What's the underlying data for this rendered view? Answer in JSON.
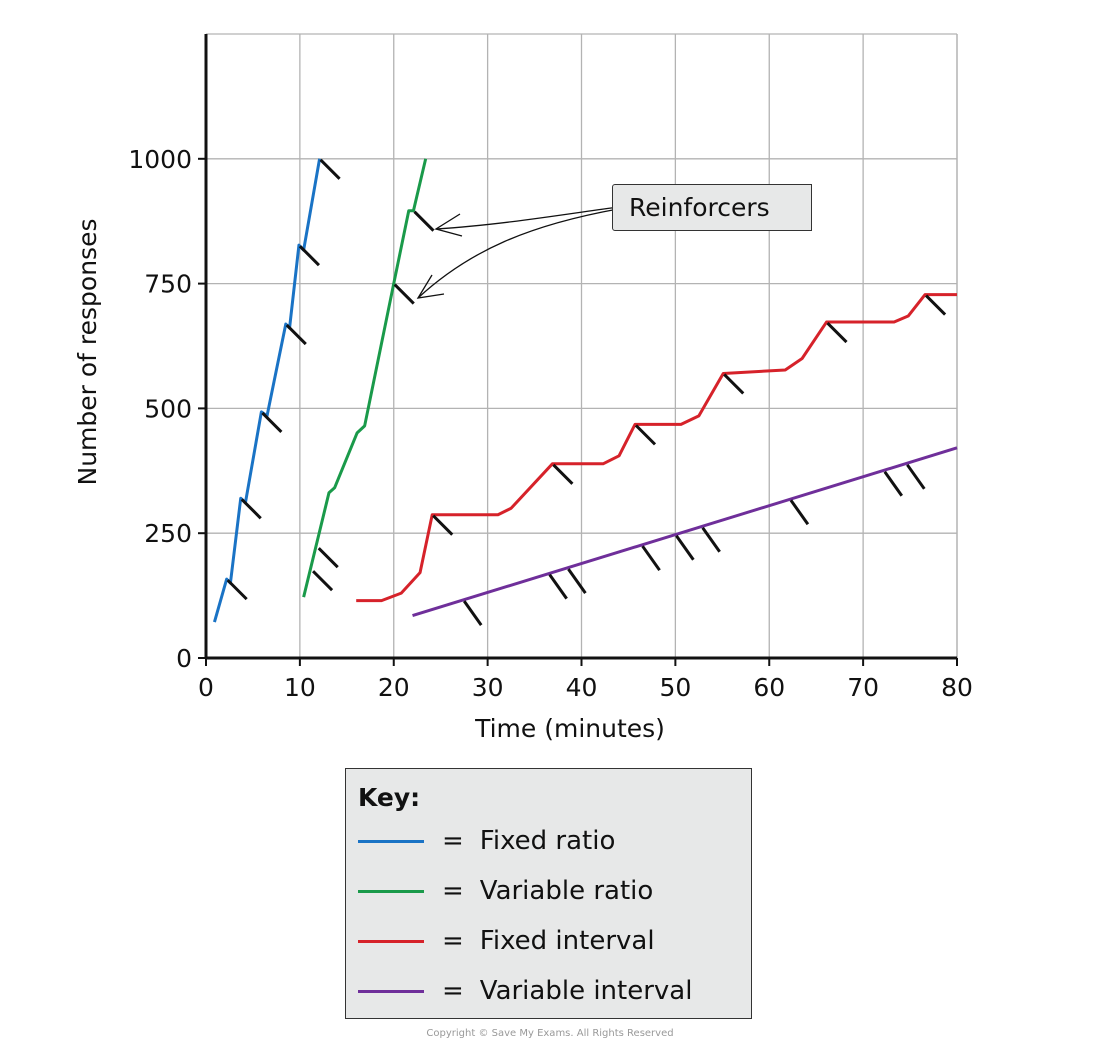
{
  "chart_data": {
    "type": "line",
    "title": "",
    "xlabel": "Time (minutes)",
    "ylabel": "Number of responses",
    "xlim": [
      0,
      80
    ],
    "ylim": [
      0,
      1250
    ],
    "xticks": [
      0,
      10,
      20,
      30,
      40,
      50,
      60,
      70,
      80
    ],
    "yticks": [
      0,
      250,
      500,
      750,
      1000
    ],
    "grid": true,
    "legend_placement": "bottom",
    "annotation": "Reinforcers",
    "series": [
      {
        "name": "Fixed ratio",
        "color": "#1a73c5",
        "points": [
          [
            0.9,
            72
          ],
          [
            2.2,
            158
          ],
          [
            2.6,
            150
          ],
          [
            3.7,
            320
          ],
          [
            4.2,
            311
          ],
          [
            5.9,
            493
          ],
          [
            6.5,
            485
          ],
          [
            8.5,
            669
          ],
          [
            8.9,
            661
          ],
          [
            9.9,
            827
          ],
          [
            10.4,
            817
          ],
          [
            12.1,
            1000
          ]
        ],
        "reinforcers": [
          [
            2.2,
            158
          ],
          [
            3.7,
            320
          ],
          [
            5.9,
            493
          ],
          [
            8.5,
            669
          ],
          [
            9.9,
            827
          ],
          [
            12.1,
            1000
          ]
        ]
      },
      {
        "name": "Variable ratio",
        "color": "#1a9a4a",
        "points": [
          [
            10.4,
            122
          ],
          [
            13.1,
            331
          ],
          [
            13.7,
            341
          ],
          [
            16.1,
            451
          ],
          [
            16.9,
            465
          ],
          [
            20,
            750
          ],
          [
            21.6,
            896
          ],
          [
            22.1,
            896
          ],
          [
            23.4,
            1000
          ]
        ],
        "reinforcers": [
          [
            11.3,
            176
          ],
          [
            11.9,
            222
          ],
          [
            20,
            750
          ],
          [
            22.1,
            896
          ]
        ]
      },
      {
        "name": "Fixed interval",
        "color": "#d6222a",
        "points": [
          [
            16,
            115
          ],
          [
            18.7,
            115
          ],
          [
            20.8,
            130
          ],
          [
            22.8,
            171
          ],
          [
            24.1,
            287
          ],
          [
            31.1,
            287
          ],
          [
            32.5,
            300
          ],
          [
            36.9,
            389
          ],
          [
            42.3,
            389
          ],
          [
            44,
            405
          ],
          [
            45.7,
            468
          ],
          [
            50.6,
            468
          ],
          [
            52.5,
            485
          ],
          [
            55.1,
            570
          ],
          [
            61.7,
            577
          ],
          [
            63.5,
            600
          ],
          [
            66.1,
            673
          ],
          [
            73.3,
            673
          ],
          [
            74.8,
            685
          ],
          [
            76.6,
            728
          ],
          [
            80,
            728
          ]
        ],
        "reinforcers": [
          [
            24.1,
            287
          ],
          [
            36.9,
            389
          ],
          [
            45.7,
            468
          ],
          [
            55.1,
            570
          ],
          [
            66.1,
            673
          ],
          [
            76.6,
            728
          ]
        ]
      },
      {
        "name": "Variable interval",
        "color": "#6f2f9a",
        "points": [
          [
            22,
            85
          ],
          [
            80,
            421
          ]
        ],
        "reinforcers": [
          [
            27.4,
            116
          ],
          [
            36.5,
            169
          ],
          [
            38.5,
            180
          ],
          [
            46.4,
            226
          ],
          [
            50,
            247
          ],
          [
            52.8,
            263
          ],
          [
            62.2,
            318
          ],
          [
            72.2,
            375
          ],
          [
            74.6,
            389
          ]
        ]
      }
    ]
  },
  "legend": {
    "title": "Key:",
    "equals": "="
  },
  "footer": {
    "copyright": "Copyright © Save My Exams. All Rights Reserved"
  }
}
